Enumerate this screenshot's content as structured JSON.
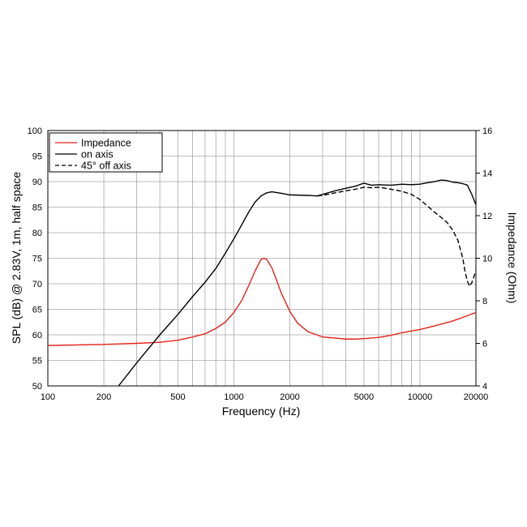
{
  "chart_data": {
    "type": "line",
    "title": "",
    "xlabel": "Frequency (Hz)",
    "ylabel_left": "SPL (dB) @ 2.83V, 1m, half space",
    "ylabel_right": "Impedance (Ohm)",
    "x_scale": "log",
    "xlim": [
      100,
      20000
    ],
    "ylim_left": [
      50,
      100
    ],
    "ylim_right": [
      4,
      16
    ],
    "x_tick_labels": [
      "100",
      "200",
      "500",
      "1000",
      "2000",
      "5000",
      "10000",
      "20000"
    ],
    "y_left_tick_labels": [
      "50",
      "55",
      "60",
      "65",
      "70",
      "75",
      "80",
      "85",
      "90",
      "95",
      "100"
    ],
    "y_right_tick_labels": [
      "4",
      "6",
      "8",
      "10",
      "12",
      "14",
      "16"
    ],
    "grid": true,
    "legend_position": "top-left",
    "series": [
      {
        "name": "Impedance",
        "axis": "right",
        "color": "#e2231a",
        "dash": "solid",
        "points": [
          [
            100,
            5.9
          ],
          [
            200,
            5.95
          ],
          [
            300,
            6.0
          ],
          [
            400,
            6.05
          ],
          [
            500,
            6.15
          ],
          [
            600,
            6.3
          ],
          [
            700,
            6.45
          ],
          [
            800,
            6.7
          ],
          [
            900,
            7.0
          ],
          [
            1000,
            7.45
          ],
          [
            1100,
            8.0
          ],
          [
            1200,
            8.7
          ],
          [
            1300,
            9.4
          ],
          [
            1400,
            9.95
          ],
          [
            1450,
            10.0
          ],
          [
            1500,
            9.95
          ],
          [
            1600,
            9.55
          ],
          [
            1700,
            8.95
          ],
          [
            1800,
            8.35
          ],
          [
            2000,
            7.5
          ],
          [
            2200,
            6.95
          ],
          [
            2500,
            6.55
          ],
          [
            3000,
            6.3
          ],
          [
            3500,
            6.25
          ],
          [
            4000,
            6.2
          ],
          [
            4500,
            6.2
          ],
          [
            5000,
            6.22
          ],
          [
            6000,
            6.28
          ],
          [
            7000,
            6.38
          ],
          [
            8000,
            6.5
          ],
          [
            10000,
            6.65
          ],
          [
            12000,
            6.82
          ],
          [
            15000,
            7.05
          ],
          [
            18000,
            7.3
          ],
          [
            20000,
            7.45
          ]
        ]
      },
      {
        "name": "on axis",
        "axis": "left",
        "color": "#000000",
        "dash": "solid",
        "points": [
          [
            240,
            50
          ],
          [
            300,
            54.5
          ],
          [
            400,
            60
          ],
          [
            500,
            64
          ],
          [
            600,
            67.5
          ],
          [
            700,
            70.3
          ],
          [
            800,
            73
          ],
          [
            900,
            76
          ],
          [
            1000,
            78.8
          ],
          [
            1100,
            81.5
          ],
          [
            1200,
            84
          ],
          [
            1300,
            86
          ],
          [
            1400,
            87.2
          ],
          [
            1500,
            87.8
          ],
          [
            1600,
            88
          ],
          [
            1800,
            87.7
          ],
          [
            2000,
            87.4
          ],
          [
            2500,
            87.3
          ],
          [
            2800,
            87.2
          ],
          [
            3000,
            87.5
          ],
          [
            3500,
            88.2
          ],
          [
            4000,
            88.7
          ],
          [
            4500,
            89.1
          ],
          [
            5000,
            89.7
          ],
          [
            5500,
            89.3
          ],
          [
            6000,
            89.4
          ],
          [
            7000,
            89.3
          ],
          [
            8000,
            89.5
          ],
          [
            9000,
            89.4
          ],
          [
            10000,
            89.5
          ],
          [
            11000,
            89.8
          ],
          [
            12000,
            90.0
          ],
          [
            13000,
            90.3
          ],
          [
            14000,
            90.2
          ],
          [
            15000,
            89.9
          ],
          [
            16000,
            89.8
          ],
          [
            17000,
            89.6
          ],
          [
            18000,
            89.3
          ],
          [
            19000,
            87.5
          ],
          [
            20000,
            85.5
          ]
        ]
      },
      {
        "name": "45° off axis",
        "axis": "left",
        "color": "#000000",
        "dash": "dashed",
        "points": [
          [
            2800,
            87.2
          ],
          [
            3000,
            87.3
          ],
          [
            3500,
            87.8
          ],
          [
            4000,
            88.2
          ],
          [
            4500,
            88.5
          ],
          [
            5000,
            88.9
          ],
          [
            5500,
            88.8
          ],
          [
            6000,
            88.9
          ],
          [
            6500,
            88.7
          ],
          [
            7000,
            88.5
          ],
          [
            7500,
            88.3
          ],
          [
            8000,
            88.1
          ],
          [
            9000,
            87.5
          ],
          [
            10000,
            86.5
          ],
          [
            11000,
            85.2
          ],
          [
            12000,
            84
          ],
          [
            13000,
            83
          ],
          [
            14000,
            82
          ],
          [
            15000,
            80.5
          ],
          [
            16000,
            78.5
          ],
          [
            17000,
            75
          ],
          [
            17500,
            72.3
          ],
          [
            18000,
            70.5
          ],
          [
            18500,
            69.5
          ],
          [
            19000,
            70.2
          ],
          [
            20000,
            72.5
          ]
        ]
      }
    ]
  }
}
